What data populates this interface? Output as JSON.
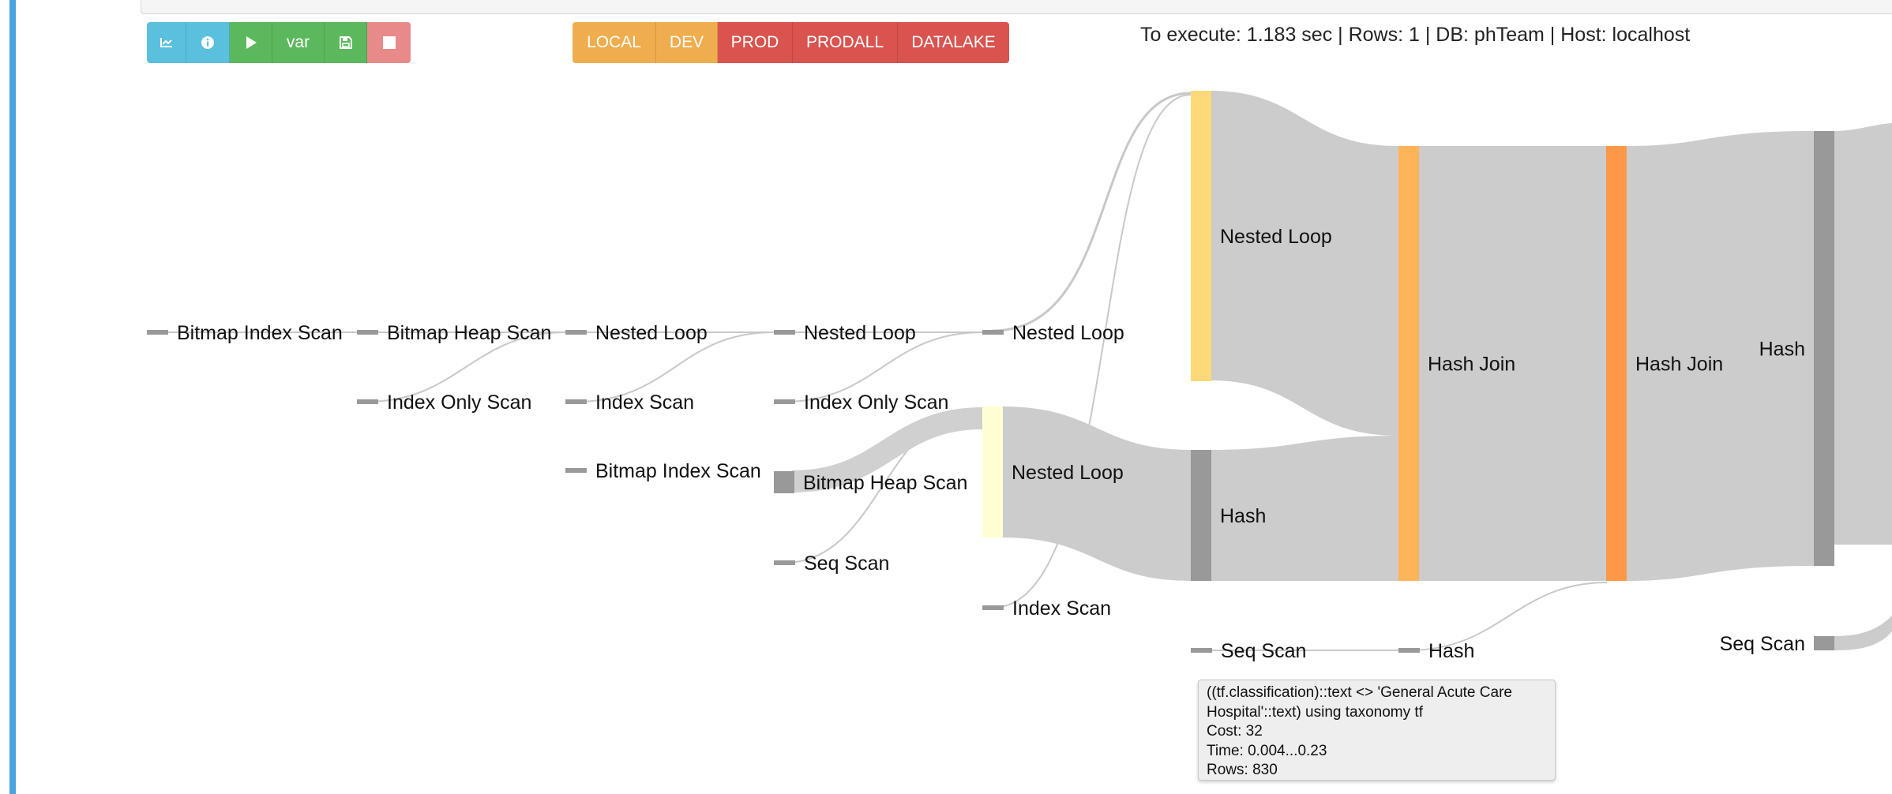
{
  "toolbar": {
    "buttons": [
      {
        "name": "explain-button",
        "icon": "chart-icon",
        "label": "",
        "color": "#5bc0de"
      },
      {
        "name": "info-button",
        "icon": "info-icon",
        "label": "",
        "color": "#5bc0de"
      },
      {
        "name": "run-button",
        "icon": "play-icon",
        "label": "",
        "color": "#5cb85c"
      },
      {
        "name": "var-button",
        "icon": "",
        "label": "var",
        "color": "#5cb85c"
      },
      {
        "name": "save-button",
        "icon": "save-icon",
        "label": "",
        "color": "#5cb85c"
      },
      {
        "name": "stop-button",
        "icon": "stop-icon",
        "label": "",
        "color": "#e8898a"
      }
    ],
    "env_buttons": [
      {
        "name": "env-local-button",
        "label": "LOCAL",
        "color": "#f0ad4e"
      },
      {
        "name": "env-dev-button",
        "label": "DEV",
        "color": "#f0ad4e"
      },
      {
        "name": "env-prod-button",
        "label": "PROD",
        "color": "#d9534f"
      },
      {
        "name": "env-prodall-button",
        "label": "PRODALL",
        "color": "#d9534f"
      },
      {
        "name": "env-datalake-button",
        "label": "DATALAKE",
        "color": "#d9534f"
      }
    ]
  },
  "status": {
    "text": "To execute: 1.183 sec | Rows: 1 | DB: phTeam | Host: localhost"
  },
  "plan_nodes": [
    {
      "id": "bis1",
      "label": "Bitmap Index Scan",
      "color": "#999999"
    },
    {
      "id": "bhs1",
      "label": "Bitmap Heap Scan",
      "color": "#999999"
    },
    {
      "id": "ios1",
      "label": "Index Only Scan",
      "color": "#999999"
    },
    {
      "id": "nl1",
      "label": "Nested Loop",
      "color": "#999999"
    },
    {
      "id": "is1",
      "label": "Index Scan",
      "color": "#999999"
    },
    {
      "id": "bis2",
      "label": "Bitmap Index Scan",
      "color": "#999999"
    },
    {
      "id": "nl2",
      "label": "Nested Loop",
      "color": "#999999"
    },
    {
      "id": "ios2",
      "label": "Index Only Scan",
      "color": "#999999"
    },
    {
      "id": "bhs2",
      "label": "Bitmap Heap Scan",
      "color": "#999999"
    },
    {
      "id": "ss1",
      "label": "Seq Scan",
      "color": "#999999"
    },
    {
      "id": "nl3",
      "label": "Nested Loop",
      "color": "#999999"
    },
    {
      "id": "nl4",
      "label": "Nested Loop",
      "color": "#ffffd2"
    },
    {
      "id": "is2",
      "label": "Index Scan",
      "color": "#999999"
    },
    {
      "id": "nl5",
      "label": "Nested Loop",
      "color": "#fed97a"
    },
    {
      "id": "hash1",
      "label": "Hash",
      "color": "#999999"
    },
    {
      "id": "ss2",
      "label": "Seq Scan",
      "color": "#999999"
    },
    {
      "id": "hj1",
      "label": "Hash Join",
      "color": "#feb458"
    },
    {
      "id": "hash2",
      "label": "Hash",
      "color": "#999999"
    },
    {
      "id": "hj2",
      "label": "Hash Join",
      "color": "#fd9848"
    },
    {
      "id": "hash3",
      "label": "Hash",
      "color": "#999999"
    },
    {
      "id": "ss3",
      "label": "Seq Scan",
      "color": "#999999"
    }
  ],
  "tooltip": {
    "line1": "((tf.classification)::text <> 'General Acute Care",
    "line2": "Hospital'::text) using taxonomy tf",
    "cost": "Cost: 32",
    "time": "Time: 0.004...0.23",
    "rows": "Rows: 830"
  }
}
